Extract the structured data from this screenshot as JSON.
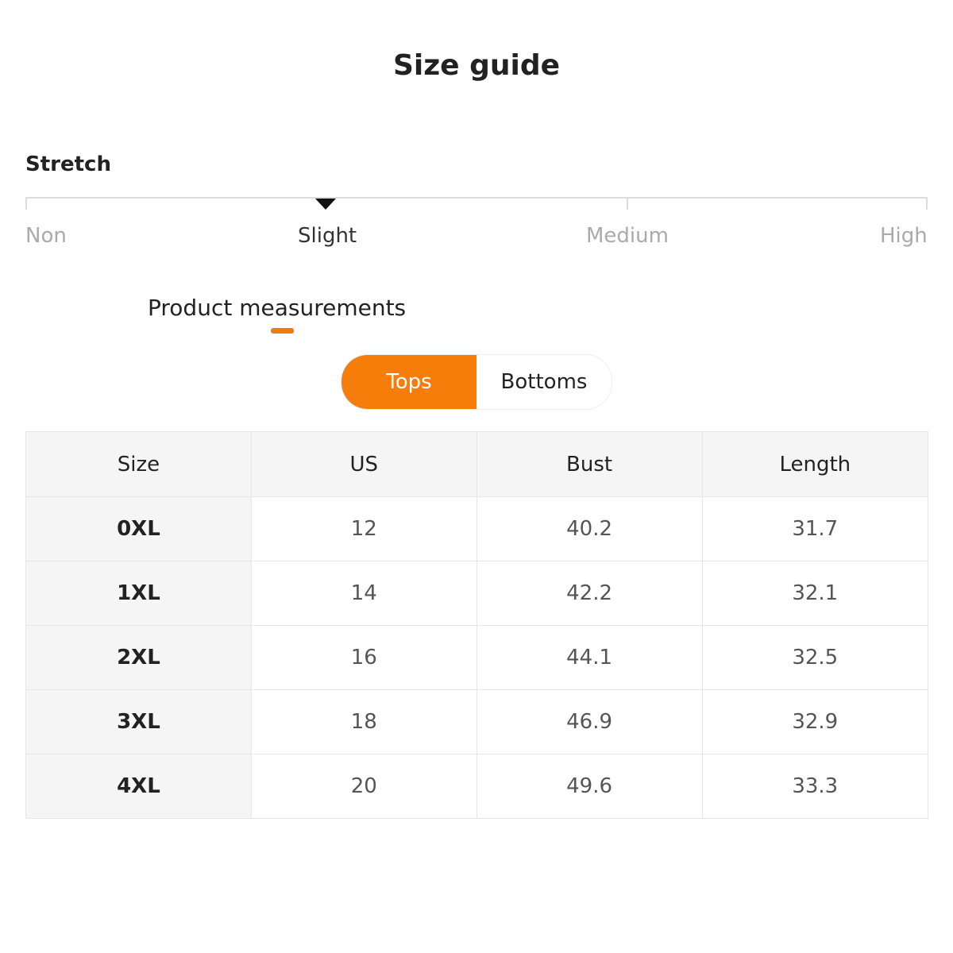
{
  "title": "Size guide",
  "stretch": {
    "label": "Stretch",
    "levels": [
      "Non",
      "Slight",
      "Medium",
      "High"
    ],
    "selected": "Slight"
  },
  "section_tab": "Product measurements",
  "toggle": {
    "tops": "Tops",
    "bottoms": "Bottoms",
    "active": "Tops"
  },
  "colors": {
    "accent": "#f77d0a"
  },
  "table": {
    "headers": [
      "Size",
      "US",
      "Bust",
      "Length"
    ],
    "rows": [
      [
        "0XL",
        "12",
        "40.2",
        "31.7"
      ],
      [
        "1XL",
        "14",
        "42.2",
        "32.1"
      ],
      [
        "2XL",
        "16",
        "44.1",
        "32.5"
      ],
      [
        "3XL",
        "18",
        "46.9",
        "32.9"
      ],
      [
        "4XL",
        "20",
        "49.6",
        "33.3"
      ]
    ]
  }
}
